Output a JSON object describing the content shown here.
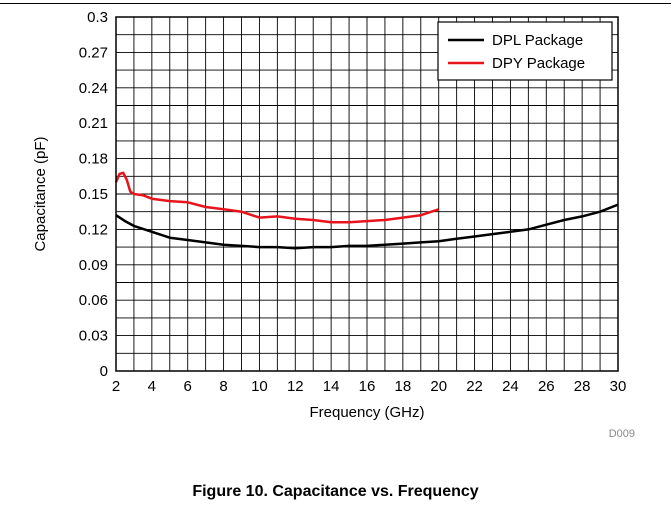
{
  "figure_caption": "Figure 10. Capacitance vs. Frequency",
  "chart_data": {
    "type": "line",
    "xlabel": "Frequency (GHz)",
    "ylabel": "Capacitance (pF)",
    "xlim": [
      2,
      30
    ],
    "ylim": [
      0,
      0.3
    ],
    "xticks": [
      2,
      4,
      6,
      8,
      10,
      12,
      14,
      16,
      18,
      20,
      22,
      24,
      26,
      28,
      30
    ],
    "yticks": [
      0,
      0.03,
      0.06,
      0.09,
      0.12,
      0.15,
      0.18,
      0.21,
      0.24,
      0.27,
      0.3
    ],
    "ytick_labels": [
      "0",
      "0.03",
      "0.06",
      "0.09",
      "0.12",
      "0.15",
      "0.18",
      "0.21",
      "0.24",
      "0.27",
      "0.3"
    ],
    "grid": true,
    "legend_position": "top-right",
    "annotation": "D009",
    "series": [
      {
        "name": "DPL Package",
        "color": "#000000",
        "x": [
          2,
          2.5,
          3,
          4,
          5,
          6,
          7,
          8,
          9,
          10,
          11,
          12,
          13,
          14,
          15,
          16,
          17,
          18,
          19,
          20,
          21,
          22,
          23,
          24,
          25,
          26,
          27,
          28,
          29,
          30
        ],
        "y": [
          0.132,
          0.127,
          0.123,
          0.118,
          0.113,
          0.111,
          0.109,
          0.107,
          0.106,
          0.105,
          0.105,
          0.104,
          0.105,
          0.105,
          0.106,
          0.106,
          0.107,
          0.108,
          0.109,
          0.11,
          0.112,
          0.114,
          0.116,
          0.118,
          0.12,
          0.124,
          0.128,
          0.131,
          0.135,
          0.141
        ]
      },
      {
        "name": "DPY Package",
        "color": "#e8141c",
        "x": [
          2,
          2.2,
          2.4,
          2.6,
          2.8,
          3,
          3.5,
          4,
          5,
          6,
          7,
          8,
          9,
          10,
          11,
          12,
          13,
          14,
          15,
          16,
          17,
          18,
          19,
          20
        ],
        "y": [
          0.16,
          0.167,
          0.168,
          0.162,
          0.152,
          0.15,
          0.149,
          0.146,
          0.144,
          0.143,
          0.139,
          0.137,
          0.135,
          0.13,
          0.131,
          0.129,
          0.128,
          0.126,
          0.126,
          0.127,
          0.128,
          0.13,
          0.132,
          0.137
        ]
      }
    ]
  }
}
